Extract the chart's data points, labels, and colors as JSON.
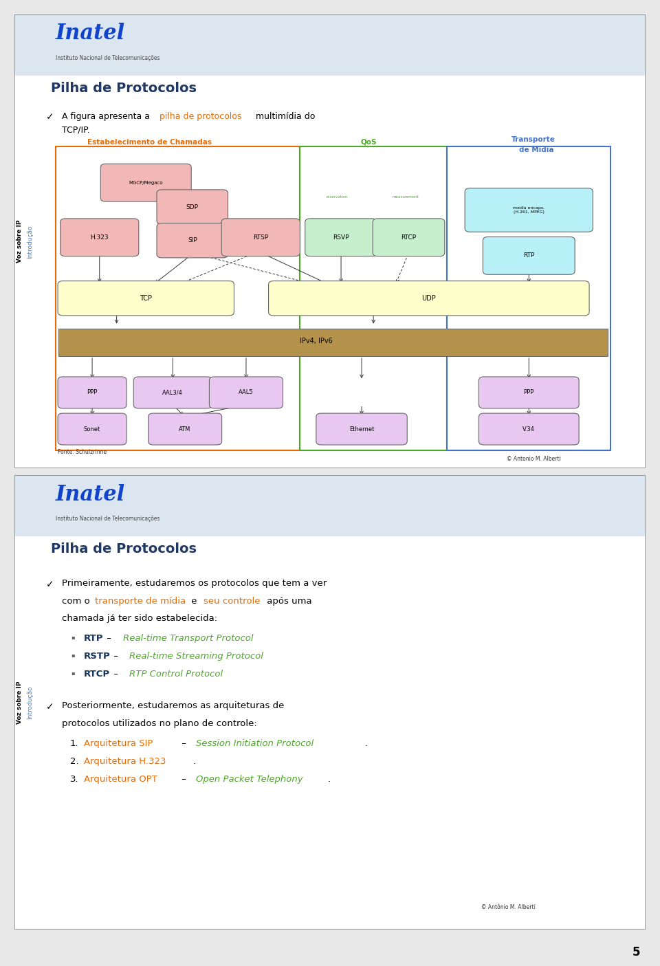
{
  "slide1": {
    "title": "Pilha de Protocolos",
    "copyright": "© Antonio M. Alberti",
    "fonte": "Fonte: Schulzrinne",
    "label_estabelecimento": "Estabelecimento de Chamadas",
    "label_qos": "QoS",
    "label_transporte_line1": "Transporte",
    "label_transporte_line2": "de Mídia",
    "color_orange": "#e36c09",
    "color_green": "#4ea72a",
    "color_blue": "#4472c4",
    "pink": "#f2b8b8",
    "green_light": "#c6efce",
    "cyan_light": "#b8f0f8",
    "yellow_light": "#ffffcc",
    "brown": "#b5924c",
    "purple_light": "#e8c8f0",
    "header_bg": "#dce6f1"
  },
  "slide2": {
    "title": "Pilha de Protocolos",
    "copyright": "© Antônio M. Alberti",
    "color_orange": "#e36c09",
    "color_green": "#4ea72a",
    "color_blue_dark": "#17375e",
    "color_sidebar": "#4f81bd",
    "header_bg": "#dce6f1",
    "bullets": [
      {
        "abbr": "RTP",
        "italic": "Real-time Transport Protocol"
      },
      {
        "abbr": "RSTP",
        "italic": "Real-time Streaming Protocol"
      },
      {
        "abbr": "RTCP",
        "italic": "RTP Control Protocol"
      }
    ],
    "numbered": [
      {
        "num": "1.",
        "colored": "Arquitetura SIP",
        "dash": true,
        "italic": "Session Initiation Protocol",
        "end": "."
      },
      {
        "num": "2.",
        "colored": "Arquitetura H.323",
        "dash": false,
        "italic": "",
        "end": "."
      },
      {
        "num": "3.",
        "colored": "Arquitetura OPT",
        "dash": true,
        "italic": "Open Packet Telephony",
        "end": "."
      }
    ]
  },
  "page_number": "5",
  "overall_bg": "#e8e8e8"
}
